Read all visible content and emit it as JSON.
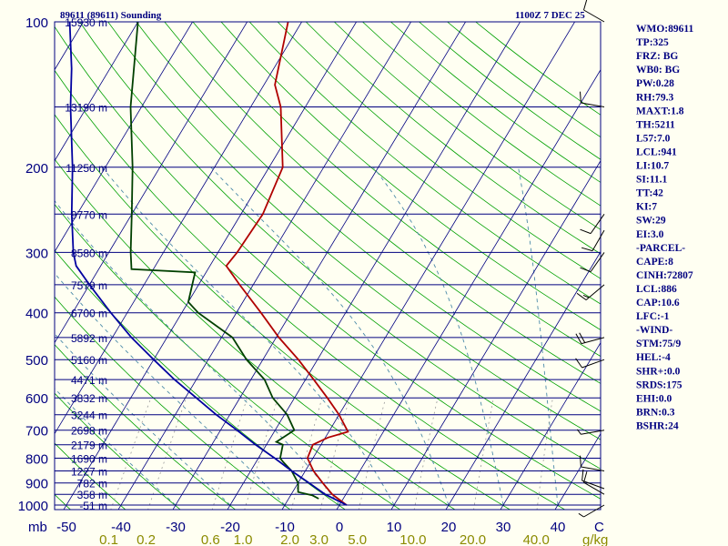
{
  "chart_data": {
    "type": "skew-t sounding",
    "title": "89611 (89611) Sounding",
    "time": "1100Z  7 DEC 25",
    "pressure_axis_unit": "mb",
    "pressure_range": [
      1000,
      100
    ],
    "pressure_ticks": [
      {
        "p": 1000,
        "label": "1000"
      },
      {
        "p": 900,
        "label": "900"
      },
      {
        "p": 800,
        "label": "800"
      },
      {
        "p": 700,
        "label": "700"
      },
      {
        "p": 600,
        "label": "600"
      },
      {
        "p": 500,
        "label": "500"
      },
      {
        "p": 400,
        "label": "400"
      },
      {
        "p": 300,
        "label": "300"
      },
      {
        "p": 200,
        "label": "200"
      },
      {
        "p": 100,
        "label": "100"
      }
    ],
    "height_labels": [
      {
        "p": 100,
        "label": "15930 m"
      },
      {
        "p": 150,
        "label": "13190 m"
      },
      {
        "p": 200,
        "label": "11250 m"
      },
      {
        "p": 250,
        "label": "9770 m"
      },
      {
        "p": 300,
        "label": "8580 m"
      },
      {
        "p": 350,
        "label": "7579 m"
      },
      {
        "p": 400,
        "label": "6700 m"
      },
      {
        "p": 450,
        "label": "5892 m"
      },
      {
        "p": 500,
        "label": "5160 m"
      },
      {
        "p": 550,
        "label": "4471 m"
      },
      {
        "p": 600,
        "label": "3832 m"
      },
      {
        "p": 650,
        "label": "3244 m"
      },
      {
        "p": 700,
        "label": "2698 m"
      },
      {
        "p": 750,
        "label": "2179 m"
      },
      {
        "p": 800,
        "label": "1690 m"
      },
      {
        "p": 850,
        "label": "1227 m"
      },
      {
        "p": 900,
        "label": "782 m"
      },
      {
        "p": 950,
        "label": "358 m"
      },
      {
        "p": 1000,
        "label": "-51 m"
      }
    ],
    "temperature_ticks": [
      {
        "t": -50,
        "label": "-50"
      },
      {
        "t": -40,
        "label": "-40"
      },
      {
        "t": -30,
        "label": "-30"
      },
      {
        "t": -20,
        "label": "-20"
      },
      {
        "t": -10,
        "label": "-10"
      },
      {
        "t": 0,
        "label": "0"
      },
      {
        "t": 10,
        "label": "10"
      },
      {
        "t": 20,
        "label": "20"
      },
      {
        "t": 30,
        "label": "30"
      },
      {
        "t": 40,
        "label": "40"
      }
    ],
    "temperature_unit": "C",
    "mixing_ratio_ticks": [
      {
        "w": 0.1,
        "label": "0.1"
      },
      {
        "w": 0.2,
        "label": "0.2"
      },
      {
        "w": 0.6,
        "label": "0.6"
      },
      {
        "w": 1.0,
        "label": "1.0"
      },
      {
        "w": 2.0,
        "label": "2.0"
      },
      {
        "w": 3.0,
        "label": "3.0"
      },
      {
        "w": 5.0,
        "label": "5.0"
      },
      {
        "w": 10.0,
        "label": "10.0"
      },
      {
        "w": 20.0,
        "label": "20.0"
      },
      {
        "w": 40.0,
        "label": "40.0"
      }
    ],
    "mixing_ratio_unit": "g/kg",
    "series": [
      {
        "name": "temperature",
        "color": "#b00000",
        "points": [
          {
            "p": 1000,
            "t": 1.3
          },
          {
            "p": 950,
            "t": -2.5
          },
          {
            "p": 900,
            "t": -5.5
          },
          {
            "p": 850,
            "t": -8.5
          },
          {
            "p": 800,
            "t": -11.0
          },
          {
            "p": 750,
            "t": -11.5
          },
          {
            "p": 725,
            "t": -9.5
          },
          {
            "p": 705,
            "t": -6.5
          },
          {
            "p": 650,
            "t": -10.0
          },
          {
            "p": 600,
            "t": -14.0
          },
          {
            "p": 550,
            "t": -18.5
          },
          {
            "p": 500,
            "t": -23.5
          },
          {
            "p": 450,
            "t": -29.5
          },
          {
            "p": 400,
            "t": -35.5
          },
          {
            "p": 350,
            "t": -42.5
          },
          {
            "p": 320,
            "t": -47.0
          },
          {
            "p": 300,
            "t": -46.5
          },
          {
            "p": 250,
            "t": -46.0
          },
          {
            "p": 200,
            "t": -47.5
          },
          {
            "p": 150,
            "t": -54.5
          },
          {
            "p": 135,
            "t": -58.0
          },
          {
            "p": 100,
            "t": -62.5
          }
        ]
      },
      {
        "name": "dewpoint",
        "color": "#004000",
        "points": [
          {
            "p": 970,
            "t": -4.5
          },
          {
            "p": 955,
            "t": -6.0
          },
          {
            "p": 940,
            "t": -9.0
          },
          {
            "p": 900,
            "t": -10.0
          },
          {
            "p": 850,
            "t": -12.5
          },
          {
            "p": 815,
            "t": -15.0
          },
          {
            "p": 800,
            "t": -16.0
          },
          {
            "p": 750,
            "t": -17.0
          },
          {
            "p": 740,
            "t": -18.5
          },
          {
            "p": 700,
            "t": -16.5
          },
          {
            "p": 650,
            "t": -19.5
          },
          {
            "p": 600,
            "t": -24.0
          },
          {
            "p": 550,
            "t": -27.5
          },
          {
            "p": 500,
            "t": -33.0
          },
          {
            "p": 450,
            "t": -38.0
          },
          {
            "p": 400,
            "t": -47.0
          },
          {
            "p": 380,
            "t": -50.0
          },
          {
            "p": 330,
            "t": -52.0
          },
          {
            "p": 325,
            "t": -64.0
          },
          {
            "p": 300,
            "t": -66.0
          },
          {
            "p": 250,
            "t": -70.0
          },
          {
            "p": 200,
            "t": -75.0
          },
          {
            "p": 150,
            "t": -82.0
          },
          {
            "p": 100,
            "t": -90.0
          }
        ]
      },
      {
        "name": "parcel",
        "color": "#0000a0",
        "points": [
          {
            "p": 1000,
            "t": 1.3
          },
          {
            "p": 950,
            "t": -3.8
          },
          {
            "p": 900,
            "t": -8.0
          },
          {
            "p": 850,
            "t": -12.5
          },
          {
            "p": 800,
            "t": -17.0
          },
          {
            "p": 750,
            "t": -22.0
          },
          {
            "p": 700,
            "t": -27.0
          },
          {
            "p": 650,
            "t": -32.5
          },
          {
            "p": 600,
            "t": -38.0
          },
          {
            "p": 550,
            "t": -44.0
          },
          {
            "p": 500,
            "t": -50.0
          },
          {
            "p": 450,
            "t": -56.5
          },
          {
            "p": 400,
            "t": -63.0
          },
          {
            "p": 350,
            "t": -70.0
          },
          {
            "p": 320,
            "t": -74.5
          },
          {
            "p": 300,
            "t": -76.5
          },
          {
            "p": 250,
            "t": -81.0
          },
          {
            "p": 200,
            "t": -86.0
          },
          {
            "p": 150,
            "t": -93.0
          },
          {
            "p": 125,
            "t": -97.0
          },
          {
            "p": 100,
            "t": -102.5
          }
        ]
      }
    ],
    "winds": [
      {
        "p": 1000,
        "dir": 240,
        "spd": 5
      },
      {
        "p": 950,
        "dir": 300,
        "spd": 10
      },
      {
        "p": 925,
        "dir": 290,
        "spd": 10
      },
      {
        "p": 850,
        "dir": 280,
        "spd": 10
      },
      {
        "p": 700,
        "dir": 260,
        "spd": 5
      },
      {
        "p": 500,
        "dir": 250,
        "spd": 10
      },
      {
        "p": 450,
        "dir": 255,
        "spd": 20
      },
      {
        "p": 350,
        "dir": 230,
        "spd": 15
      },
      {
        "p": 300,
        "dir": 215,
        "spd": 10
      },
      {
        "p": 270,
        "dir": 210,
        "spd": 10
      },
      {
        "p": 250,
        "dir": 215,
        "spd": 10
      },
      {
        "p": 150,
        "dir": 280,
        "spd": 10
      },
      {
        "p": 100,
        "dir": 300,
        "spd": 10
      }
    ],
    "indices": [
      "WMO:89611",
      "TP:325",
      "FRZ: BG",
      "WB0: BG",
      "PW:0.28",
      "RH:79.3",
      "MAXT:1.8",
      "TH:5211",
      "L57:7.0",
      "LCL:941",
      "LI:10.7",
      "SI:11.1",
      "TT:42",
      "KI:7",
      "SW:29",
      "EI:3.0",
      "-PARCEL-",
      "CAPE:8",
      "CINH:72807",
      "LCL:886",
      "CAP:10.6",
      "LFC:-1",
      "-WIND-",
      "STM:75/9",
      "HEL:-4",
      "SHR+:0.0",
      "SRDS:175",
      "EHI:0.0",
      "BRN:0.3",
      "BSHR:24"
    ],
    "colors": {
      "background": "#fffff2",
      "frame": "#000080",
      "isobar": "#000080",
      "isotherm": "#000080",
      "dry_adiabat": "#00a000",
      "moist_adiabat": "#4a8aa8",
      "mixing_ratio": "#9a9a9a",
      "label": "#000080",
      "mixing_label": "#8b8b00",
      "wind_barb": "#000000"
    }
  }
}
